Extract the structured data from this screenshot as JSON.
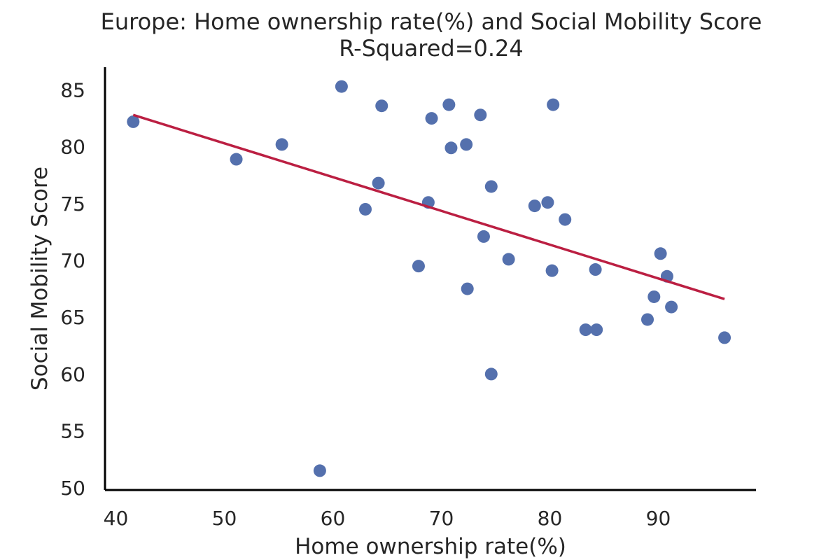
{
  "chart_data": {
    "type": "scatter",
    "title": "Europe: Home ownership rate(%) and Social Mobility Score",
    "subtitle": "R-Squared=0.24",
    "xlabel": "Home ownership rate(%)",
    "ylabel": "Social Mobility Score",
    "xlim": [
      39,
      99
    ],
    "ylim": [
      49.8,
      87
    ],
    "xticks": [
      40,
      50,
      60,
      70,
      80,
      90
    ],
    "yticks": [
      50,
      55,
      60,
      65,
      70,
      75,
      80,
      85
    ],
    "grid": false,
    "points": [
      {
        "x": 41.6,
        "y": 82.2
      },
      {
        "x": 51.1,
        "y": 78.9
      },
      {
        "x": 55.3,
        "y": 80.2
      },
      {
        "x": 58.8,
        "y": 51.5
      },
      {
        "x": 60.8,
        "y": 85.3
      },
      {
        "x": 63.0,
        "y": 74.5
      },
      {
        "x": 64.2,
        "y": 76.8
      },
      {
        "x": 64.5,
        "y": 83.6
      },
      {
        "x": 67.9,
        "y": 69.5
      },
      {
        "x": 68.8,
        "y": 75.1
      },
      {
        "x": 69.1,
        "y": 82.5
      },
      {
        "x": 70.7,
        "y": 83.7
      },
      {
        "x": 70.9,
        "y": 79.9
      },
      {
        "x": 72.3,
        "y": 80.2
      },
      {
        "x": 72.4,
        "y": 67.5
      },
      {
        "x": 73.6,
        "y": 82.8
      },
      {
        "x": 73.9,
        "y": 72.1
      },
      {
        "x": 74.6,
        "y": 76.5
      },
      {
        "x": 74.6,
        "y": 60.0
      },
      {
        "x": 76.2,
        "y": 70.1
      },
      {
        "x": 78.6,
        "y": 74.8
      },
      {
        "x": 79.8,
        "y": 75.1
      },
      {
        "x": 80.2,
        "y": 69.1
      },
      {
        "x": 80.3,
        "y": 83.7
      },
      {
        "x": 81.4,
        "y": 73.6
      },
      {
        "x": 83.3,
        "y": 63.9
      },
      {
        "x": 84.2,
        "y": 69.2
      },
      {
        "x": 84.3,
        "y": 63.9
      },
      {
        "x": 89.0,
        "y": 64.8
      },
      {
        "x": 89.6,
        "y": 66.8
      },
      {
        "x": 90.2,
        "y": 70.6
      },
      {
        "x": 90.8,
        "y": 68.6
      },
      {
        "x": 91.2,
        "y": 65.9
      },
      {
        "x": 96.1,
        "y": 63.2
      }
    ],
    "trendline": {
      "x": [
        41.6,
        96.1
      ],
      "y": [
        82.8,
        66.6
      ]
    },
    "colors": {
      "points": "#5470ad",
      "trendline": "#bb1f42",
      "axis": "#000000",
      "text": "#262626"
    }
  }
}
